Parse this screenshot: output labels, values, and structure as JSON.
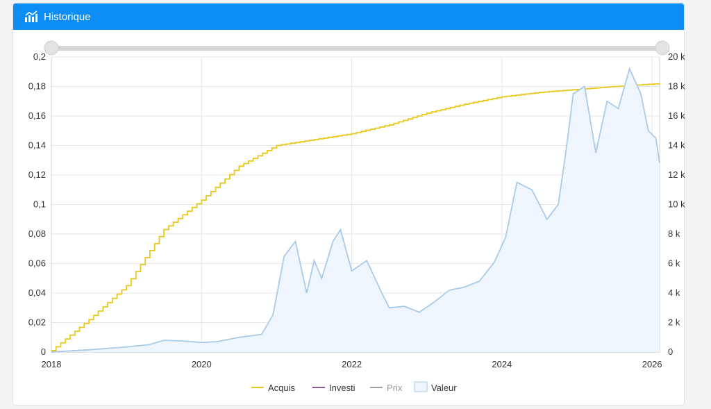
{
  "panel": {
    "title": "Historique",
    "icon": "chart-bars-icon",
    "header_color": "#0d8df8"
  },
  "chart_data": {
    "type": "line",
    "x_ticks": [
      "2018",
      "2020",
      "2022",
      "2024",
      "2026"
    ],
    "x_range": [
      2018.0,
      2026.1
    ],
    "y_left": {
      "range": [
        0,
        0.2
      ],
      "ticks": [
        0,
        0.02,
        0.04,
        0.06,
        0.08,
        0.1,
        0.12,
        0.14,
        0.16,
        0.18,
        0.2
      ],
      "tick_labels": [
        "0",
        "0,02",
        "0,04",
        "0,06",
        "0,08",
        "0,1",
        "0,12",
        "0,14",
        "0,16",
        "0,18",
        "0,2"
      ]
    },
    "y_right": {
      "range": [
        0,
        20000
      ],
      "ticks": [
        0,
        2000,
        4000,
        6000,
        8000,
        10000,
        12000,
        14000,
        16000,
        18000,
        20000
      ],
      "tick_labels": [
        "0",
        "2 k",
        "4 k",
        "6 k",
        "8 k",
        "10 k",
        "12 k",
        "14 k",
        "16 k",
        "18 k",
        "20 k"
      ]
    },
    "grid": true,
    "legend_position": "bottom",
    "range_slider": true,
    "series": [
      {
        "name": "Acquis",
        "axis": "left",
        "color": "#e8c81d",
        "style": "step",
        "x": [
          2018.0,
          2018.5,
          2019.0,
          2019.5,
          2020.0,
          2020.5,
          2021.0,
          2021.5,
          2022.0,
          2022.5,
          2023.0,
          2023.5,
          2024.0,
          2024.5,
          2025.0,
          2025.5,
          2026.1
        ],
        "values": [
          0.001,
          0.022,
          0.045,
          0.083,
          0.103,
          0.126,
          0.14,
          0.144,
          0.148,
          0.154,
          0.162,
          0.168,
          0.173,
          0.176,
          0.178,
          0.18,
          0.182
        ]
      },
      {
        "name": "Investi",
        "axis": "right",
        "color": "#8b5a99",
        "style": "line",
        "x": [
          2018.0,
          2026.1
        ],
        "values": [
          0,
          2400
        ]
      },
      {
        "name": "Prix",
        "axis": "right",
        "color": "#9aa0a8",
        "style": "line",
        "hidden": true,
        "x": [],
        "values": []
      },
      {
        "name": "Valeur",
        "axis": "right",
        "color": "#a9cbe8",
        "fill": "#eef5fc",
        "style": "area",
        "x": [
          2018.0,
          2018.5,
          2019.0,
          2019.3,
          2019.5,
          2019.75,
          2020.0,
          2020.2,
          2020.5,
          2020.8,
          2020.95,
          2021.1,
          2021.25,
          2021.4,
          2021.5,
          2021.6,
          2021.75,
          2021.85,
          2022.0,
          2022.2,
          2022.4,
          2022.5,
          2022.7,
          2022.9,
          2023.1,
          2023.3,
          2023.5,
          2023.7,
          2023.9,
          2024.05,
          2024.2,
          2024.4,
          2024.6,
          2024.75,
          2024.85,
          2024.95,
          2025.1,
          2025.25,
          2025.4,
          2025.55,
          2025.7,
          2025.85,
          2025.95,
          2026.05,
          2026.1
        ],
        "values": [
          0,
          150,
          350,
          500,
          800,
          750,
          650,
          700,
          1000,
          1200,
          2500,
          6500,
          7500,
          4000,
          6200,
          5000,
          7500,
          8300,
          5500,
          6200,
          4000,
          3000,
          3100,
          2700,
          3400,
          4200,
          4400,
          4800,
          6100,
          7800,
          11500,
          11000,
          9000,
          10000,
          13500,
          17500,
          18000,
          13500,
          17000,
          16500,
          19200,
          17500,
          15000,
          14500,
          12800
        ]
      }
    ]
  }
}
